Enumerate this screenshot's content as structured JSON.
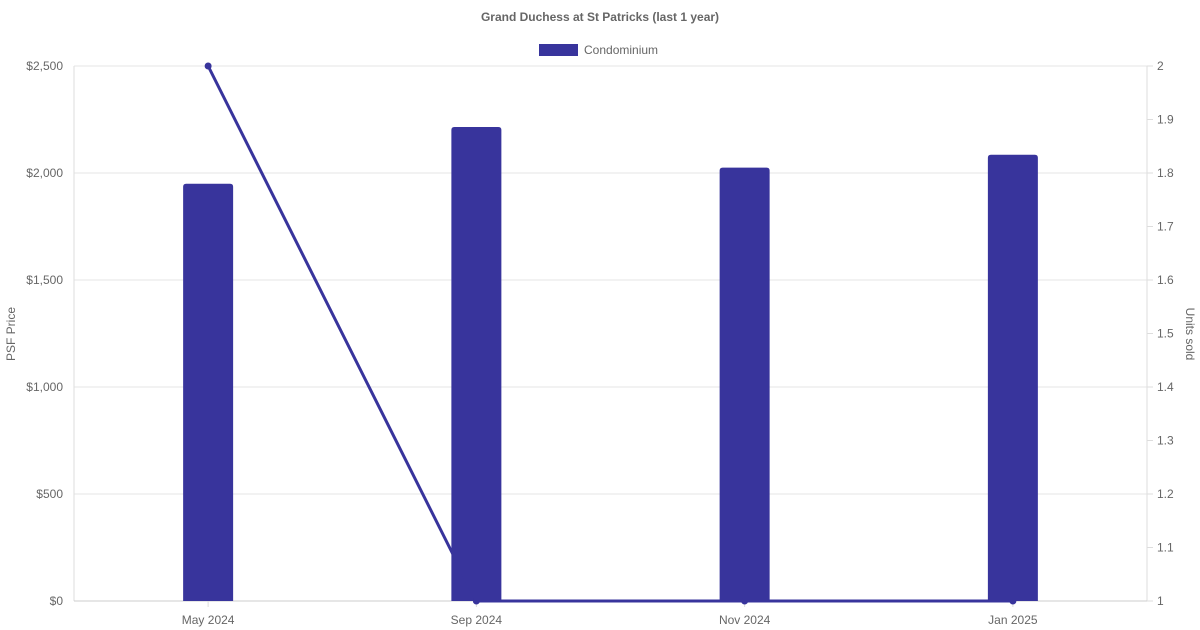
{
  "chart_data": {
    "type": "bar",
    "title": "Grand Duchess at St Patricks (last 1 year)",
    "categories": [
      "May 2024",
      "Sep 2024",
      "Nov 2024",
      "Jan 2025"
    ],
    "series": [
      {
        "name": "Condominium",
        "type": "bar",
        "axis": "left",
        "values": [
          1950,
          2215,
          2025,
          2085
        ],
        "color": "#38349c"
      },
      {
        "type": "line",
        "axis": "right",
        "values": [
          2,
          1,
          1,
          1
        ],
        "color": "#38349c"
      }
    ],
    "ylabel": "PSF Price",
    "y2label": "Units sold",
    "ylim": [
      0,
      2500
    ],
    "y2lim": [
      1,
      2
    ],
    "yticks": [
      "$0",
      "$500",
      "$1,000",
      "$1,500",
      "$2,000",
      "$2,500"
    ],
    "y2ticks": [
      "1",
      "1.1",
      "1.2",
      "1.3",
      "1.4",
      "1.5",
      "1.6",
      "1.7",
      "1.8",
      "1.9",
      "2"
    ],
    "grid": true,
    "legend": "top"
  }
}
